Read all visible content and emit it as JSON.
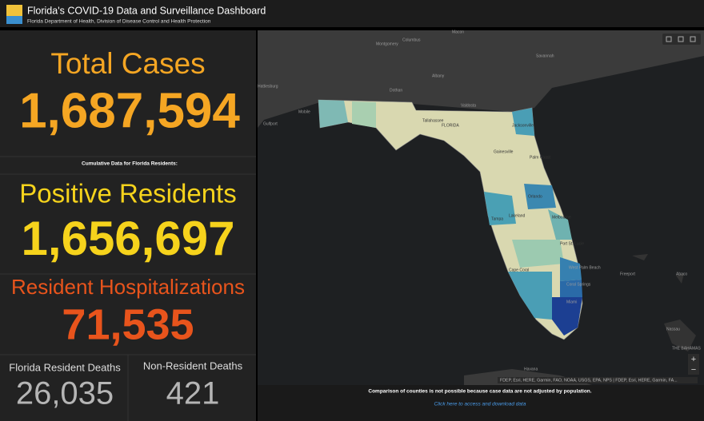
{
  "header": {
    "title": "Florida's COVID-19 Data and Surveillance Dashboard",
    "subtitle": "Florida Department of Health, Division of Disease Control and Health Protection"
  },
  "panels": {
    "total_cases": {
      "label": "Total Cases",
      "value": "1,687,594"
    },
    "note": "Cumulative Data for Florida Residents:",
    "positive_residents": {
      "label": "Positive Residents",
      "value": "1,656,697"
    },
    "hospitalizations": {
      "label": "Resident Hospitalizations",
      "value": "71,535"
    },
    "resident_deaths": {
      "label": "Florida Resident Deaths",
      "value": "26,035"
    },
    "nonresident_deaths": {
      "label": "Non-Resident Deaths",
      "value": "421"
    }
  },
  "map": {
    "places": [
      "Montgomery",
      "Columbus",
      "Macon",
      "Savannah",
      "Albany",
      "Dothan",
      "Hattiesburg",
      "Mobile",
      "Gulfport",
      "Valdosta",
      "Tallahassee",
      "FLORIDA",
      "Jacksonville",
      "Gainesville",
      "Palm Coast",
      "Orlando",
      "Tampa",
      "Lakeland",
      "Melbourne",
      "Port St. Lucie",
      "West Palm Beach",
      "Cape Coral",
      "Coral Springs",
      "Miami",
      "Freeport",
      "Abaco",
      "Nassau",
      "THE BAHAMAS",
      "Havana"
    ],
    "attribution": "FDEP, Esri, HERE, Garmin, FAO, NOAA, USGS, EPA, NPS | FDEP, Esri, HERE, Garmin, FA...",
    "zoom_in": "+",
    "zoom_out": "−"
  },
  "footer": {
    "disclaimer": "Comparison of counties is not possible because case data are not adjusted by population.",
    "link": "Click here to access and download data"
  }
}
